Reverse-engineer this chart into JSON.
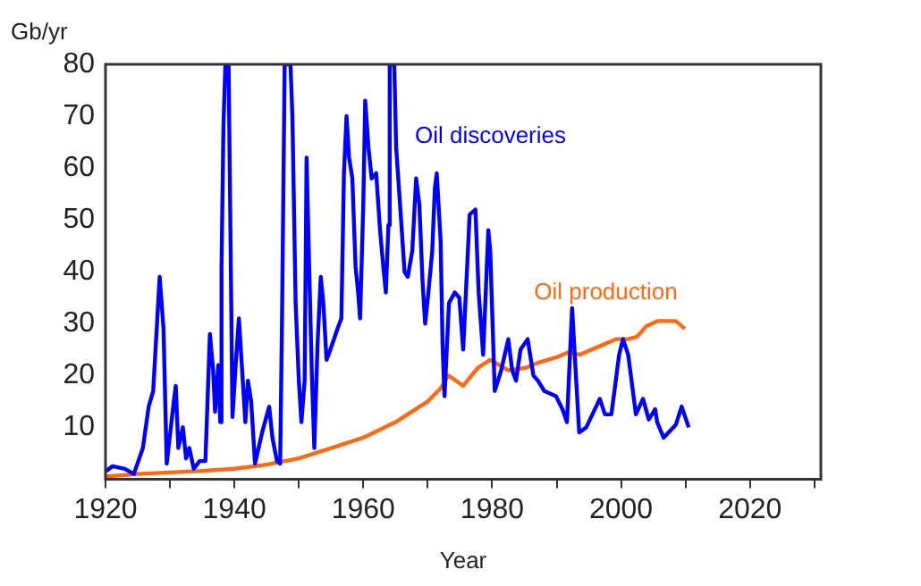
{
  "chart_data": {
    "type": "line",
    "xlabel": "Year",
    "ylabel": "Gb/yr",
    "xlim": [
      1920,
      2031
    ],
    "xticks": [
      1920,
      {
        "value": 1930,
        "label": null
      },
      1940,
      {
        "value": 1950,
        "label": null
      },
      1960,
      {
        "value": 1970,
        "label": null
      },
      1980,
      {
        "value": 1990,
        "label": null
      },
      2000,
      {
        "value": 2010,
        "label": null
      },
      2020,
      {
        "value": 2030,
        "label": null
      }
    ],
    "ylim": [
      0,
      80
    ],
    "yticks": [
      10,
      20,
      30,
      40,
      50,
      60,
      70,
      80
    ],
    "grid": false,
    "legend": false,
    "marker": "none",
    "line_style": "solid",
    "series": [
      {
        "name": "Oil discoveries",
        "color": "#0000ff",
        "x": [
          1920,
          1921.1,
          1923,
          1924.4,
          1925.8,
          1926.7,
          1927.4,
          1928.4,
          1929,
          1929.5,
          1930.6,
          1930.9,
          1931.3,
          1932,
          1932.5,
          1933,
          1933.7,
          1934.6,
          1935.5,
          1936.2,
          1936.7,
          1937,
          1937.5,
          1937.8,
          1938,
          1938.3,
          1938.6,
          1939.1,
          1939.4,
          1939.7,
          1940.2,
          1940.7,
          1941.2,
          1941.7,
          1942.1,
          1942.6,
          1943.2,
          1944.3,
          1945.4,
          1945.9,
          1946.6,
          1947.1,
          1947.4,
          1947.8,
          1948.7,
          1949,
          1949.5,
          1950,
          1950.4,
          1950.9,
          1951.2,
          1951.6,
          1952,
          1952.4,
          1952.9,
          1953.4,
          1953.8,
          1954.3,
          1954.9,
          1956,
          1956.6,
          1957,
          1957.4,
          1957.8,
          1958.3,
          1958.8,
          1959.2,
          1959.5,
          1960,
          1960.3,
          1960.8,
          1961.3,
          1962,
          1962.6,
          1963.1,
          1963.5,
          1963.9,
          1964.1,
          1964.8,
          1965.1,
          1965.7,
          1966.4,
          1966.9,
          1967.6,
          1968.2,
          1968.7,
          1969.2,
          1969.6,
          1970.1,
          1970.7,
          1971.1,
          1971.4,
          1972,
          1972.3,
          1972.6,
          1973.3,
          1974.2,
          1974.9,
          1975.5,
          1976.5,
          1977.4,
          1977.9,
          1978.6,
          1979.4,
          1979.7,
          1980.4,
          1981.4,
          1982.5,
          1983.1,
          1983.7,
          1984.4,
          1985.5,
          1986.4,
          1987.1,
          1988.1,
          1989.9,
          1990.9,
          1991.6,
          1992.4,
          1993.5,
          1994.6,
          1996.7,
          1997.5,
          1998.5,
          1999.7,
          2000.3,
          2001.1,
          2002.3,
          2003.4,
          2004.3,
          2005.3,
          2005.6,
          2006.6,
          2008.5,
          2009.4,
          2010.5
        ],
        "values": [
          1.5,
          2.5,
          2,
          1,
          6,
          14,
          17,
          39,
          29,
          3,
          15,
          18,
          6,
          10,
          4,
          6,
          2,
          3.5,
          3.5,
          28,
          21,
          13,
          22,
          11,
          41,
          68,
          80,
          80,
          46,
          12,
          22,
          31,
          21,
          11,
          19,
          15,
          3,
          9,
          14,
          8,
          3.5,
          3,
          32,
          80,
          80,
          70,
          34,
          19,
          11,
          19,
          62,
          41,
          21,
          6,
          26,
          39,
          34,
          23,
          25,
          29,
          31,
          59,
          70,
          62,
          58,
          41,
          36,
          31,
          53,
          73,
          64,
          58,
          59,
          48,
          41,
          36,
          49,
          80,
          80,
          64,
          53,
          40,
          39,
          44,
          58,
          53,
          38,
          30,
          36,
          44,
          56,
          59,
          46,
          26,
          16,
          34,
          36,
          35,
          25,
          51,
          52,
          36,
          24,
          48,
          44,
          17,
          21,
          27,
          21,
          19,
          25,
          27,
          20,
          19,
          17,
          16,
          13.5,
          11,
          33,
          9,
          10,
          15.5,
          12.5,
          12.5,
          24,
          27,
          24,
          12.5,
          15.5,
          11.5,
          13.5,
          11,
          8,
          10.5,
          14,
          10
        ]
      },
      {
        "name": "Oil production",
        "color": "#ff6a13",
        "x": [
          1920,
          1925,
          1930,
          1935,
          1940,
          1945,
          1950,
          1955,
          1960,
          1965,
          1970,
          1972,
          1973.2,
          1975.5,
          1977.8,
          1979.7,
          1982.5,
          1985.3,
          1987.2,
          1990,
          1991.8,
          1993.6,
          1996.4,
          1999.2,
          2001.1,
          2002.5,
          2003.9,
          2005.7,
          2008.5,
          2009.9
        ],
        "values": [
          0.5,
          1,
          1.3,
          1.6,
          2,
          2.8,
          4,
          6,
          8,
          11,
          15,
          17.5,
          20,
          18,
          21.5,
          23,
          21,
          21.5,
          22.5,
          23.5,
          24.5,
          24,
          25.5,
          27,
          27,
          27.5,
          29.5,
          30.5,
          30.5,
          29
        ]
      }
    ]
  }
}
